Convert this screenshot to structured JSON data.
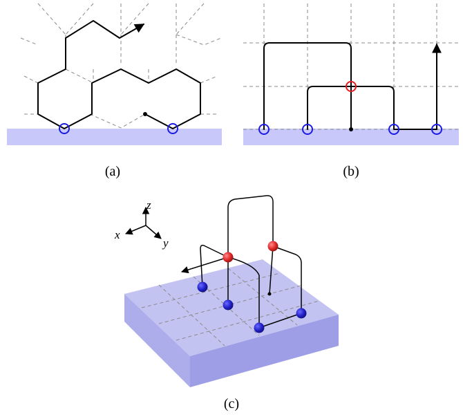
{
  "panels": {
    "a": {
      "caption": "(a)"
    },
    "b": {
      "caption": "(b)"
    },
    "c": {
      "caption": "(c)",
      "axes": {
        "x": "x",
        "y": "y",
        "z": "z"
      }
    }
  },
  "colors": {
    "boundary": "#c8c8fa",
    "blue_marker": "#1a1ae6",
    "red_marker": "#e61a1a",
    "slab_top": "#b4b4f0",
    "slab_side": "#9c9ce8"
  }
}
